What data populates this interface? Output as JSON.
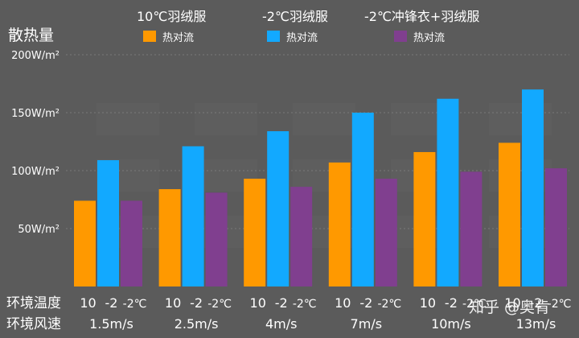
{
  "chart_data": {
    "type": "bar",
    "ylabel": "散热量",
    "y_ticks": [
      "200W/m²",
      "150W/m²",
      "100W/m²",
      "50W/m²"
    ],
    "y_tick_values": [
      200,
      150,
      100,
      50
    ],
    "ylim": [
      0,
      200
    ],
    "grid": true,
    "legend_position": "top",
    "legend_groups": [
      "10℃羽绒服",
      "-2℃羽绒服",
      "-2℃冲锋衣+羽绒服"
    ],
    "series": [
      {
        "name": "热对流",
        "group": "10℃羽绒服",
        "color": "#ff9900",
        "temperature": "10",
        "values": [
          74,
          84,
          93,
          107,
          116,
          124
        ]
      },
      {
        "name": "热对流",
        "group": "-2℃羽绒服",
        "color": "#12a9ff",
        "temperature": "-2",
        "values": [
          109,
          121,
          134,
          150,
          162,
          170
        ]
      },
      {
        "name": "热对流",
        "group": "-2℃冲锋衣+羽绒服",
        "color": "#803f8f",
        "temperature": "-2℃",
        "values": [
          74,
          81,
          86,
          93,
          99,
          102
        ]
      }
    ],
    "categories": [
      "1.5m/s",
      "2.5m/s",
      "4m/s",
      "7m/s",
      "10m/s",
      "13m/s"
    ],
    "row_labels": {
      "temperature": "环境温度",
      "wind_speed": "环境风速"
    },
    "watermark": "知乎 @奥肯"
  }
}
